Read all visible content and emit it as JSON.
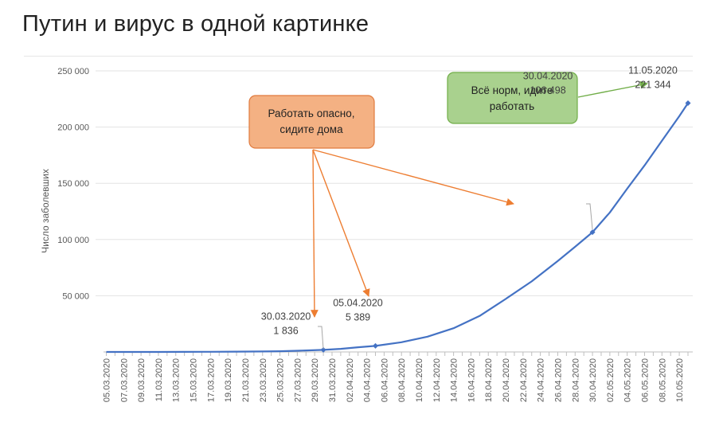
{
  "page": {
    "title": "Путин и вирус в одной картинке"
  },
  "chart_data": {
    "type": "line",
    "ylabel": "Число заболевших",
    "xlabel": "",
    "ylim": [
      0,
      250000
    ],
    "yticks": [
      0,
      50000,
      100000,
      150000,
      200000,
      250000
    ],
    "ytick_labels": [
      "",
      "50 000",
      "100 000",
      "150 000",
      "200 000",
      "250 000"
    ],
    "x_start": "05.03.2020",
    "x_end": "11.05.2020",
    "xtick_labels": [
      "05.03.2020",
      "07.03.2020",
      "09.03.2020",
      "11.03.2020",
      "13.03.2020",
      "15.03.2020",
      "17.03.2020",
      "19.03.2020",
      "21.03.2020",
      "23.03.2020",
      "25.03.2020",
      "27.03.2020",
      "29.03.2020",
      "31.03.2020",
      "02.04.2020",
      "04.04.2020",
      "06.04.2020",
      "08.04.2020",
      "10.04.2020",
      "12.04.2020",
      "14.04.2020",
      "16.04.2020",
      "18.04.2020",
      "20.04.2020",
      "22.04.2020",
      "24.04.2020",
      "26.04.2020",
      "28.04.2020",
      "30.04.2020",
      "02.05.2020",
      "04.05.2020",
      "06.05.2020",
      "08.05.2020",
      "10.05.2020"
    ],
    "grid": "horizontal",
    "series": [
      {
        "color": "#4472c4",
        "points": [
          [
            "05.03.2020",
            4
          ],
          [
            "08.03.2020",
            10
          ],
          [
            "11.03.2020",
            28
          ],
          [
            "14.03.2020",
            59
          ],
          [
            "17.03.2020",
            114
          ],
          [
            "20.03.2020",
            253
          ],
          [
            "23.03.2020",
            438
          ],
          [
            "25.03.2020",
            658
          ],
          [
            "27.03.2020",
            1036
          ],
          [
            "30.03.2020",
            1836
          ],
          [
            "01.04.2020",
            2777
          ],
          [
            "03.04.2020",
            4149
          ],
          [
            "05.04.2020",
            5389
          ],
          [
            "08.04.2020",
            8672
          ],
          [
            "11.04.2020",
            13584
          ],
          [
            "14.04.2020",
            21102
          ],
          [
            "17.04.2020",
            32008
          ],
          [
            "20.04.2020",
            47121
          ],
          [
            "23.04.2020",
            62773
          ],
          [
            "26.04.2020",
            80949
          ],
          [
            "28.04.2020",
            93558
          ],
          [
            "30.04.2020",
            106498
          ],
          [
            "02.05.2020",
            124054
          ],
          [
            "04.05.2020",
            145268
          ],
          [
            "06.05.2020",
            165929
          ],
          [
            "08.05.2020",
            187859
          ],
          [
            "10.05.2020",
            209688
          ],
          [
            "11.05.2020",
            221344
          ]
        ],
        "markers": [
          {
            "date": "30.03.2020",
            "value": 1836,
            "date_label": "30.03.2020",
            "value_label": "1 836"
          },
          {
            "date": "05.04.2020",
            "value": 5389,
            "date_label": "05.04.2020",
            "value_label": "5 389"
          },
          {
            "date": "30.04.2020",
            "value": 106498,
            "date_label": "30.04.2020",
            "value_label": "106 498"
          },
          {
            "date": "11.05.2020",
            "value": 221344,
            "date_label": "11.05.2020",
            "value_label": "221 344"
          }
        ]
      }
    ],
    "callouts": [
      {
        "lines": [
          "Работать опасно,",
          "сидите дома"
        ],
        "fill": "#f4b183",
        "stroke": "#e07a3e",
        "arrow_color": "#ed7d31"
      },
      {
        "lines": [
          "Всё норм, идите",
          "работать"
        ],
        "fill": "#a9d18e",
        "stroke": "#70ad47",
        "arrow_color": "#70ad47"
      }
    ]
  }
}
